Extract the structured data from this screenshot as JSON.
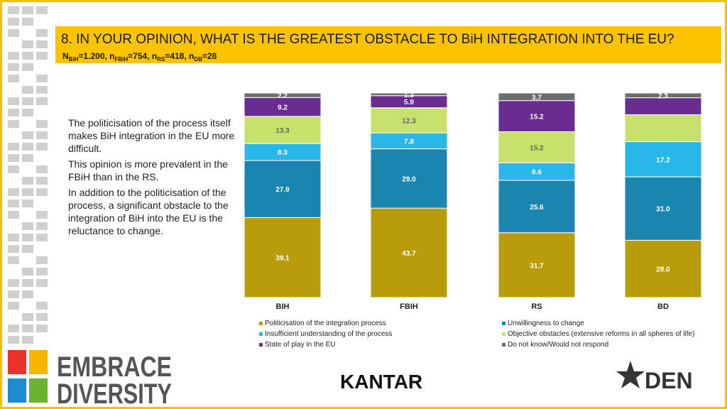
{
  "header": {
    "title": "8. IN YOUR OPINION, WHAT IS THE GREATEST OBSTACLE TO BiH INTEGRATION INTO THE EU?",
    "sample_parts": [
      "N",
      "BiH",
      "=1.200, n",
      "FBiH",
      "=754, n",
      "RS",
      "=418, n",
      "DB",
      "=28"
    ]
  },
  "commentary": [
    "The politicisation of the process itself makes BiH integration in the EU more difficult.",
    "This opinion is more prevalent in the FBiH than in the RS.",
    "In addition to the politicisation of the process, a significant obstacle to the integration of BiH into the EU is the reluctance to change."
  ],
  "logos": {
    "left_top": "EMBRACE",
    "left_bottom": "DIVERSITY",
    "center": "KANTAR",
    "right": "DEN"
  },
  "chart_data": {
    "type": "stacked_bar",
    "categories": [
      "BIH",
      "FBIH",
      "RS",
      "BD"
    ],
    "ylim": [
      0,
      100
    ],
    "series": [
      {
        "name": "Politicisation of the integration process",
        "color": "#b89c0a",
        "values": [
          39.1,
          43.7,
          31.7,
          28.0
        ],
        "value_labels": [
          "39.1",
          "43.7",
          "31.7",
          "28.0"
        ]
      },
      {
        "name": "Unwillingness to change",
        "color": "#1a86b0",
        "values": [
          27.9,
          29.0,
          25.6,
          31.0
        ],
        "value_labels": [
          "27.9",
          "29.0",
          "25.6",
          "31.0"
        ]
      },
      {
        "name": "Insufficient understanding of the process",
        "color": "#29b6e8",
        "values": [
          8.3,
          7.8,
          8.6,
          17.2
        ],
        "value_labels": [
          "8.3",
          "7.8",
          "8.6",
          "17.2"
        ]
      },
      {
        "name": "Objective obstacles (extensive reforms in all spheres of life)",
        "color": "#c6e26c",
        "values": [
          13.3,
          12.3,
          15.2,
          13.2
        ],
        "value_labels": [
          "13.3",
          "12.3",
          "15.2",
          null
        ]
      },
      {
        "name": "State of play in the EU",
        "color": "#6a2c91",
        "values": [
          9.2,
          5.9,
          15.2,
          8.3
        ],
        "value_labels": [
          "9.2",
          "5.9",
          "15.2",
          null
        ]
      },
      {
        "name": "Do not know/Would not respond",
        "color": "#6d6d6d",
        "values": [
          2.2,
          1.3,
          3.7,
          2.3
        ],
        "value_labels": [
          "2.2",
          "1.3",
          "3.7",
          "2.3"
        ]
      }
    ]
  }
}
